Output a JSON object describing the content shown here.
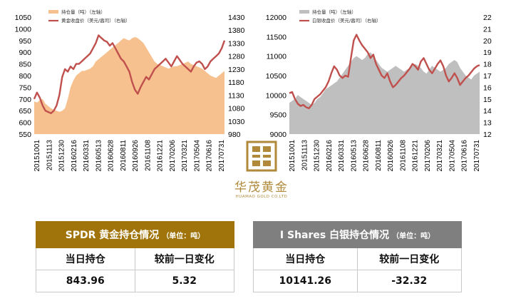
{
  "chart_data": [
    {
      "type": "line",
      "legend": [
        {
          "label": "持仓量（吨）（左轴）",
          "color": "#f7c08f"
        },
        {
          "label": "黄金收盘价（美元/盎司）（右轴）",
          "color": "#c0504d"
        }
      ],
      "y_left": {
        "ticks": [
          "1050",
          "1000",
          "950",
          "900",
          "850",
          "800",
          "750",
          "700",
          "650",
          "600",
          "550"
        ],
        "range": [
          550,
          1050
        ]
      },
      "y_right": {
        "ticks": [
          "1430",
          "1380",
          "1330",
          "1280",
          "1230",
          "1180",
          "1130",
          "1080",
          "1030",
          "980"
        ],
        "range": [
          980,
          1430
        ]
      },
      "x_ticks": [
        "20151001",
        "20151113",
        "20151230",
        "20160216",
        "20160331",
        "20160513",
        "20160628",
        "20160811",
        "20160926",
        "20161108",
        "20161221",
        "20170206",
        "20170321",
        "20170504",
        "20170616",
        "20170731"
      ],
      "series": [
        {
          "name": "持仓量（吨）（左轴）",
          "kind": "area",
          "color": "#f7c08f",
          "values": [
            690,
            685,
            695,
            700,
            680,
            670,
            660,
            655,
            650,
            645,
            650,
            660,
            700,
            750,
            780,
            800,
            810,
            820,
            820,
            825,
            830,
            840,
            860,
            870,
            880,
            890,
            900,
            910,
            920,
            930,
            940,
            950,
            960,
            955,
            950,
            960,
            965,
            960,
            950,
            940,
            920,
            900,
            880,
            860,
            850,
            845,
            840,
            835,
            830,
            835,
            840,
            840,
            845,
            850,
            855,
            860,
            850,
            845,
            840,
            835,
            830,
            820,
            810,
            800,
            795,
            790,
            800,
            810,
            820
          ]
        },
        {
          "name": "黄金收盘价（美元/盎司）（右轴）",
          "kind": "line",
          "color": "#c0504d",
          "values": [
            1115,
            1140,
            1120,
            1090,
            1070,
            1065,
            1060,
            1070,
            1090,
            1130,
            1200,
            1230,
            1220,
            1240,
            1230,
            1250,
            1250,
            1260,
            1270,
            1280,
            1290,
            1310,
            1330,
            1360,
            1350,
            1340,
            1335,
            1320,
            1330,
            1310,
            1290,
            1270,
            1260,
            1240,
            1220,
            1180,
            1150,
            1135,
            1160,
            1180,
            1200,
            1190,
            1210,
            1230,
            1240,
            1250,
            1260,
            1270,
            1255,
            1240,
            1260,
            1280,
            1265,
            1250,
            1240,
            1230,
            1220,
            1240,
            1255,
            1260,
            1250,
            1230,
            1240,
            1260,
            1270,
            1280,
            1290,
            1310,
            1340
          ]
        }
      ]
    },
    {
      "type": "line",
      "legend": [
        {
          "label": "持仓量（吨）（左轴）",
          "color": "#bfbfbf"
        },
        {
          "label": "白银收盘价（美元/盎司）（右轴）",
          "color": "#c0504d"
        }
      ],
      "y_left": {
        "ticks": [
          "12000",
          "11500",
          "11000",
          "10500",
          "10000",
          "9500",
          "9000"
        ],
        "range": [
          9000,
          12000
        ]
      },
      "y_right": {
        "ticks": [
          "22",
          "21",
          "20",
          "19",
          "18",
          "17",
          "16",
          "15",
          "14",
          "13",
          "12"
        ],
        "range": [
          12,
          22
        ]
      },
      "x_ticks": [
        "20151001",
        "20151113",
        "20151230",
        "20160216",
        "20160331",
        "20160513",
        "20160628",
        "20160811",
        "20160926",
        "20161108",
        "20161221",
        "20170206",
        "20170321",
        "20170504",
        "20170616",
        "20170731"
      ],
      "series": [
        {
          "name": "持仓量（吨）（左轴）",
          "kind": "area",
          "color": "#bfbfbf",
          "values": [
            9800,
            9850,
            9900,
            10000,
            9950,
            9900,
            9850,
            9800,
            9750,
            9800,
            9900,
            9950,
            10050,
            10150,
            10200,
            10250,
            10300,
            10350,
            10450,
            10550,
            10650,
            10750,
            10850,
            10950,
            11000,
            10950,
            10900,
            10950,
            11050,
            11100,
            11000,
            10900,
            10800,
            10700,
            10650,
            10600,
            10650,
            10700,
            10750,
            10700,
            10650,
            10600,
            10650,
            10700,
            10750,
            10800,
            10750,
            10700,
            10600,
            10550,
            10650,
            10750,
            10700,
            10650,
            10600,
            10650,
            10700,
            10800,
            10850,
            10900,
            10850,
            10700,
            10600,
            10500,
            10450,
            10400,
            10500,
            10550,
            10600
          ]
        },
        {
          "name": "白银收盘价（美元/盎司）（右轴）",
          "kind": "line",
          "color": "#c0504d",
          "values": [
            15.5,
            15.6,
            15.0,
            14.6,
            14.4,
            14.5,
            14.3,
            14.2,
            14.5,
            15.0,
            15.2,
            15.4,
            15.7,
            16.0,
            16.5,
            17.2,
            17.8,
            17.5,
            17.0,
            16.8,
            17.0,
            16.9,
            18.5,
            20.0,
            20.5,
            20.0,
            19.6,
            19.3,
            19.0,
            18.5,
            18.8,
            18.0,
            17.5,
            17.0,
            16.8,
            17.2,
            16.5,
            16.0,
            16.2,
            16.5,
            16.8,
            17.0,
            17.3,
            17.6,
            18.0,
            17.8,
            17.5,
            18.2,
            18.5,
            18.0,
            17.5,
            17.2,
            17.6,
            18.0,
            18.3,
            17.8,
            17.0,
            16.5,
            16.8,
            17.2,
            16.8,
            16.2,
            16.5,
            16.8,
            17.0,
            17.3,
            17.6,
            17.8,
            17.9
          ]
        }
      ]
    }
  ],
  "logo": {
    "name": "华茂黄金",
    "sub": "HUAMAO GOLD CO.LTD"
  },
  "tables": {
    "spdr": {
      "title": "SPDR 黄金持仓情况",
      "unit": "（单位：吨）",
      "col1": "当日持仓",
      "col2": "较前一日变化",
      "val1": "843.96",
      "val2": "5.32",
      "color": "#a0740a"
    },
    "ishares": {
      "title": "I Shares 白银持仓情况",
      "unit": "（单位：吨）",
      "col1": "当日持仓",
      "col2": "较前一日变化",
      "val1": "10141.26",
      "val2": "-32.32",
      "color": "#7f7f7f"
    }
  }
}
